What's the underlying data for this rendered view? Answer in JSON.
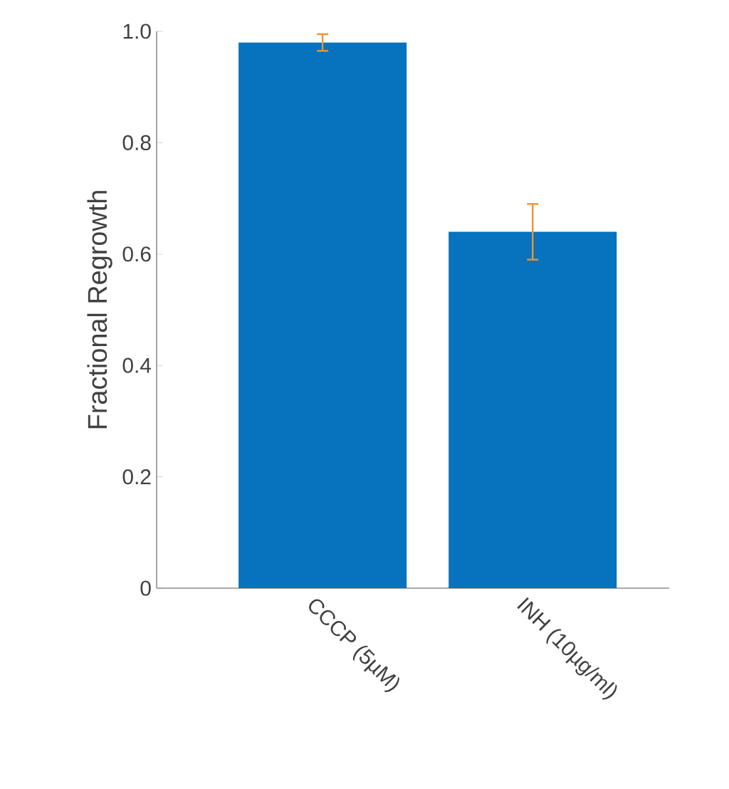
{
  "chart_data": {
    "type": "bar",
    "ylabel": "Fractional Regrowth",
    "categories": [
      "CCCP (5µM)",
      "INH (10µg/ml)"
    ],
    "values": [
      0.98,
      0.64
    ],
    "errors": [
      0.015,
      0.05
    ],
    "color": "#0772bd",
    "ylim": [
      0,
      1.0
    ],
    "yticks": [
      0,
      0.2,
      0.4,
      0.6,
      0.8,
      {
        "value": 1.0,
        "label": "1.0"
      }
    ]
  }
}
